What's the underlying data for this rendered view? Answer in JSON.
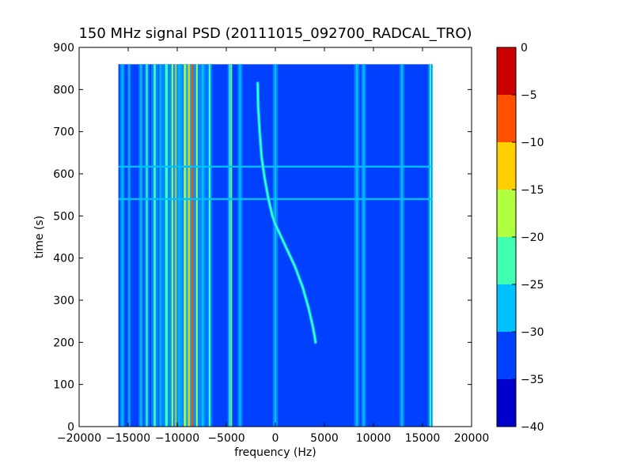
{
  "chart_data": {
    "type": "heatmap",
    "title": "150 MHz signal PSD (20111015_092700_RADCAL_TRO)",
    "xlabel": "frequency (Hz)",
    "ylabel": "time (s)",
    "xlim": [
      -20000,
      20000
    ],
    "ylim": [
      0,
      900
    ],
    "xticks": [
      -20000,
      -15000,
      -10000,
      -5000,
      0,
      5000,
      10000,
      15000,
      20000
    ],
    "yticks": [
      0,
      100,
      200,
      300,
      400,
      500,
      600,
      700,
      800,
      900
    ],
    "data_extent": {
      "x": [
        -16000,
        16000
      ],
      "y": [
        0,
        860
      ]
    },
    "background_level": -32.5,
    "colorbar": {
      "levels": [
        -40,
        -35,
        -30,
        -25,
        -20,
        -15,
        -10,
        -5,
        0
      ],
      "ticks": [
        0,
        -5,
        -10,
        -15,
        -20,
        -25,
        -30,
        -35,
        -40
      ],
      "colors": [
        "#0000cc",
        "#0040ff",
        "#00c0ff",
        "#40ffb0",
        "#b0ff40",
        "#ffd000",
        "#ff5000",
        "#cc0000"
      ]
    },
    "vertical_lines": [
      {
        "f": -15600,
        "w": 150,
        "level": -27
      },
      {
        "f": -14900,
        "w": 100,
        "level": -28
      },
      {
        "f": -13700,
        "w": 140,
        "level": -27
      },
      {
        "f": -13100,
        "w": 160,
        "level": -22
      },
      {
        "f": -12300,
        "w": 220,
        "level": -24
      },
      {
        "f": -11700,
        "w": 120,
        "level": -27
      },
      {
        "f": -11100,
        "w": 260,
        "level": -22
      },
      {
        "f": -10500,
        "w": 160,
        "level": -17
      },
      {
        "f": -10150,
        "w": 120,
        "level": -14
      },
      {
        "f": -9800,
        "w": 180,
        "level": -27
      },
      {
        "f": -9200,
        "w": 260,
        "level": -17
      },
      {
        "f": -8800,
        "w": 220,
        "level": -12
      },
      {
        "f": -8450,
        "w": 180,
        "level": -7
      },
      {
        "f": -8000,
        "w": 160,
        "level": -17
      },
      {
        "f": -7400,
        "w": 220,
        "level": -27
      },
      {
        "f": -6700,
        "w": 170,
        "level": -22
      },
      {
        "f": -4650,
        "w": 140,
        "level": -22
      },
      {
        "f": -4500,
        "w": 80,
        "level": -17
      },
      {
        "f": -3600,
        "w": 150,
        "level": -27
      },
      {
        "f": 0,
        "w": 160,
        "level": -27
      },
      {
        "f": 8300,
        "w": 170,
        "level": -27
      },
      {
        "f": 9000,
        "w": 150,
        "level": -27
      },
      {
        "f": 12900,
        "w": 150,
        "level": -27
      },
      {
        "f": 15800,
        "w": 160,
        "level": -22
      }
    ],
    "horizontal_lines": [
      {
        "t": 617,
        "level": -27
      },
      {
        "t": 540,
        "level": -27
      }
    ],
    "chirp_trace": {
      "level": -22,
      "points": [
        [
          -1800,
          815
        ],
        [
          -1750,
          760
        ],
        [
          -1600,
          700
        ],
        [
          -1400,
          640
        ],
        [
          -1100,
          590
        ],
        [
          -700,
          540
        ],
        [
          -300,
          500
        ],
        [
          0,
          480
        ],
        [
          1000,
          430
        ],
        [
          2000,
          380
        ],
        [
          2800,
          330
        ],
        [
          3400,
          280
        ],
        [
          3800,
          240
        ],
        [
          4000,
          215
        ],
        [
          4100,
          200
        ]
      ]
    }
  }
}
